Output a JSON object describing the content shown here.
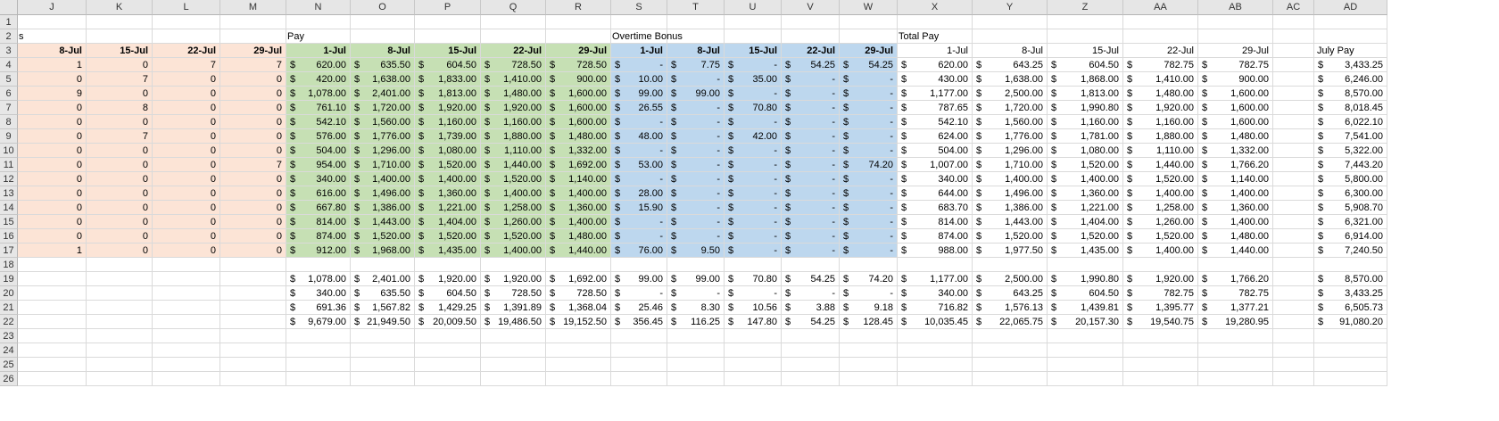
{
  "colors": {
    "peach": "#fce4d6",
    "green": "#c6e0b4",
    "blue": "#bdd7ee",
    "header_bg": "#e6e6e6"
  },
  "columns": [
    "J",
    "K",
    "L",
    "M",
    "N",
    "O",
    "P",
    "Q",
    "R",
    "S",
    "T",
    "U",
    "V",
    "W",
    "X",
    "Y",
    "Z",
    "AA",
    "AB",
    "AC",
    "AD"
  ],
  "rows": [
    "1",
    "2",
    "3",
    "4",
    "5",
    "6",
    "7",
    "8",
    "9",
    "10",
    "11",
    "12",
    "13",
    "14",
    "15",
    "16",
    "17",
    "18",
    "19",
    "20",
    "21",
    "22",
    "23",
    "24",
    "25",
    "26"
  ],
  "section_labels": {
    "J2": "s",
    "N2": "Pay",
    "S2": "Overtime Bonus",
    "X2": "Total Pay"
  },
  "date_headers": {
    "J": "8-Jul",
    "K": "15-Jul",
    "L": "22-Jul",
    "M": "29-Jul",
    "N": "1-Jul",
    "O": "8-Jul",
    "P": "15-Jul",
    "Q": "22-Jul",
    "R": "29-Jul",
    "S": "1-Jul",
    "T": "8-Jul",
    "U": "15-Jul",
    "V": "22-Jul",
    "W": "29-Jul",
    "X": "1-Jul",
    "Y": "8-Jul",
    "Z": "15-Jul",
    "AA": "22-Jul",
    "AB": "29-Jul",
    "AD": "July Pay"
  },
  "hours_table": [
    [
      "1",
      "0",
      "7",
      "7"
    ],
    [
      "0",
      "7",
      "0",
      "0"
    ],
    [
      "9",
      "0",
      "0",
      "0"
    ],
    [
      "0",
      "8",
      "0",
      "0"
    ],
    [
      "0",
      "0",
      "0",
      "0"
    ],
    [
      "0",
      "7",
      "0",
      "0"
    ],
    [
      "0",
      "0",
      "0",
      "0"
    ],
    [
      "0",
      "0",
      "0",
      "7"
    ],
    [
      "0",
      "0",
      "0",
      "0"
    ],
    [
      "0",
      "0",
      "0",
      "0"
    ],
    [
      "0",
      "0",
      "0",
      "0"
    ],
    [
      "0",
      "0",
      "0",
      "0"
    ],
    [
      "0",
      "0",
      "0",
      "0"
    ],
    [
      "1",
      "0",
      "0",
      "0"
    ]
  ],
  "money_table": [
    [
      "620.00",
      "635.50",
      "604.50",
      "728.50",
      "728.50",
      "-",
      "7.75",
      "-",
      "54.25",
      "54.25",
      "620.00",
      "643.25",
      "604.50",
      "782.75",
      "782.75",
      "3,433.25"
    ],
    [
      "420.00",
      "1,638.00",
      "1,833.00",
      "1,410.00",
      "900.00",
      "10.00",
      "-",
      "35.00",
      "-",
      "-",
      "430.00",
      "1,638.00",
      "1,868.00",
      "1,410.00",
      "900.00",
      "6,246.00"
    ],
    [
      "1,078.00",
      "2,401.00",
      "1,813.00",
      "1,480.00",
      "1,600.00",
      "99.00",
      "99.00",
      "-",
      "-",
      "-",
      "1,177.00",
      "2,500.00",
      "1,813.00",
      "1,480.00",
      "1,600.00",
      "8,570.00"
    ],
    [
      "761.10",
      "1,720.00",
      "1,920.00",
      "1,920.00",
      "1,600.00",
      "26.55",
      "-",
      "70.80",
      "-",
      "-",
      "787.65",
      "1,720.00",
      "1,990.80",
      "1,920.00",
      "1,600.00",
      "8,018.45"
    ],
    [
      "542.10",
      "1,560.00",
      "1,160.00",
      "1,160.00",
      "1,600.00",
      "-",
      "-",
      "-",
      "-",
      "-",
      "542.10",
      "1,560.00",
      "1,160.00",
      "1,160.00",
      "1,600.00",
      "6,022.10"
    ],
    [
      "576.00",
      "1,776.00",
      "1,739.00",
      "1,880.00",
      "1,480.00",
      "48.00",
      "-",
      "42.00",
      "-",
      "-",
      "624.00",
      "1,776.00",
      "1,781.00",
      "1,880.00",
      "1,480.00",
      "7,541.00"
    ],
    [
      "504.00",
      "1,296.00",
      "1,080.00",
      "1,110.00",
      "1,332.00",
      "-",
      "-",
      "-",
      "-",
      "-",
      "504.00",
      "1,296.00",
      "1,080.00",
      "1,110.00",
      "1,332.00",
      "5,322.00"
    ],
    [
      "954.00",
      "1,710.00",
      "1,520.00",
      "1,440.00",
      "1,692.00",
      "53.00",
      "-",
      "-",
      "-",
      "74.20",
      "1,007.00",
      "1,710.00",
      "1,520.00",
      "1,440.00",
      "1,766.20",
      "7,443.20"
    ],
    [
      "340.00",
      "1,400.00",
      "1,400.00",
      "1,520.00",
      "1,140.00",
      "-",
      "-",
      "-",
      "-",
      "-",
      "340.00",
      "1,400.00",
      "1,400.00",
      "1,520.00",
      "1,140.00",
      "5,800.00"
    ],
    [
      "616.00",
      "1,496.00",
      "1,360.00",
      "1,400.00",
      "1,400.00",
      "28.00",
      "-",
      "-",
      "-",
      "-",
      "644.00",
      "1,496.00",
      "1,360.00",
      "1,400.00",
      "1,400.00",
      "6,300.00"
    ],
    [
      "667.80",
      "1,386.00",
      "1,221.00",
      "1,258.00",
      "1,360.00",
      "15.90",
      "-",
      "-",
      "-",
      "-",
      "683.70",
      "1,386.00",
      "1,221.00",
      "1,258.00",
      "1,360.00",
      "5,908.70"
    ],
    [
      "814.00",
      "1,443.00",
      "1,404.00",
      "1,260.00",
      "1,400.00",
      "-",
      "-",
      "-",
      "-",
      "-",
      "814.00",
      "1,443.00",
      "1,404.00",
      "1,260.00",
      "1,400.00",
      "6,321.00"
    ],
    [
      "874.00",
      "1,520.00",
      "1,520.00",
      "1,520.00",
      "1,480.00",
      "-",
      "-",
      "-",
      "-",
      "-",
      "874.00",
      "1,520.00",
      "1,520.00",
      "1,520.00",
      "1,480.00",
      "6,914.00"
    ],
    [
      "912.00",
      "1,968.00",
      "1,435.00",
      "1,400.00",
      "1,440.00",
      "76.00",
      "9.50",
      "-",
      "-",
      "-",
      "988.00",
      "1,977.50",
      "1,435.00",
      "1,400.00",
      "1,440.00",
      "7,240.50"
    ]
  ],
  "summary_table": [
    [
      "1,078.00",
      "2,401.00",
      "1,920.00",
      "1,920.00",
      "1,692.00",
      "99.00",
      "99.00",
      "70.80",
      "54.25",
      "74.20",
      "1,177.00",
      "2,500.00",
      "1,990.80",
      "1,920.00",
      "1,766.20",
      "8,570.00"
    ],
    [
      "340.00",
      "635.50",
      "604.50",
      "728.50",
      "728.50",
      "-",
      "-",
      "-",
      "-",
      "-",
      "340.00",
      "643.25",
      "604.50",
      "782.75",
      "782.75",
      "3,433.25"
    ],
    [
      "691.36",
      "1,567.82",
      "1,429.25",
      "1,391.89",
      "1,368.04",
      "25.46",
      "8.30",
      "10.56",
      "3.88",
      "9.18",
      "716.82",
      "1,576.13",
      "1,439.81",
      "1,395.77",
      "1,377.21",
      "6,505.73"
    ],
    [
      "9,679.00",
      "21,949.50",
      "20,009.50",
      "19,486.50",
      "19,152.50",
      "356.45",
      "116.25",
      "147.80",
      "54.25",
      "128.45",
      "10,035.45",
      "22,065.75",
      "20,157.30",
      "19,540.75",
      "19,280.95",
      "91,080.20"
    ]
  ],
  "currency_symbol": "$"
}
